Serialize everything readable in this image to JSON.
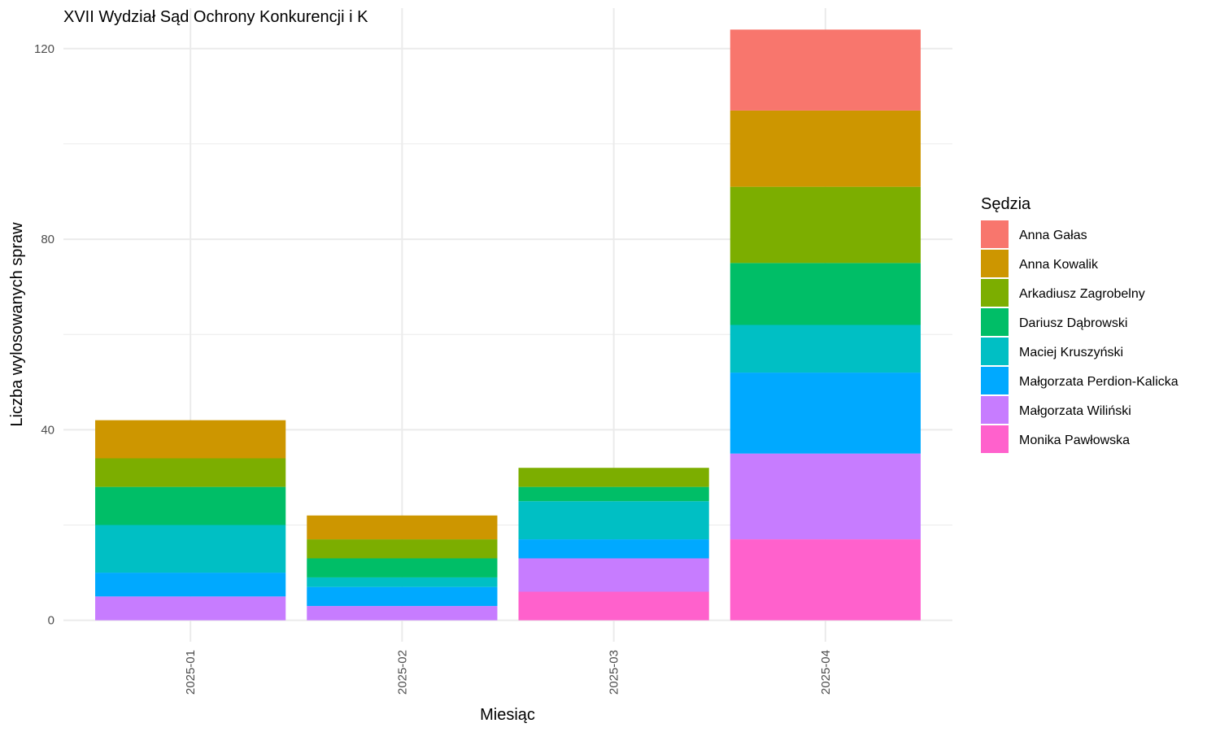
{
  "chart_data": {
    "type": "bar",
    "stacked": true,
    "title": "XVII Wydział Sąd Ochrony Konkurencji i K",
    "xlabel": "Miesiąc",
    "ylabel": "Liczba wylosowanych spraw",
    "categories": [
      "2025-01",
      "2025-02",
      "2025-03",
      "2025-04"
    ],
    "ylim": [
      -4.5,
      128.5
    ],
    "yticks": [
      0,
      40,
      80,
      120
    ],
    "grid": true,
    "legend": {
      "title": "Sędzia",
      "position": "right"
    },
    "series": [
      {
        "name": "Anna Gałas",
        "color": "#F8766D",
        "values": [
          0,
          0,
          0,
          17
        ]
      },
      {
        "name": "Anna Kowalik",
        "color": "#CD9600",
        "values": [
          8,
          5,
          0,
          16
        ]
      },
      {
        "name": "Arkadiusz Zagrobelny",
        "color": "#7CAE00",
        "values": [
          6,
          4,
          4,
          16
        ]
      },
      {
        "name": "Dariusz Dąbrowski",
        "color": "#00BE67",
        "values": [
          8,
          4,
          3,
          13
        ]
      },
      {
        "name": "Maciej Kruszyński",
        "color": "#00BFC4",
        "values": [
          10,
          2,
          8,
          10
        ]
      },
      {
        "name": "Małgorzata Perdion-Kalicka",
        "color": "#00A9FF",
        "values": [
          5,
          4,
          4,
          17
        ]
      },
      {
        "name": "Małgorzata Wiliński",
        "color": "#C77CFF",
        "values": [
          5,
          3,
          7,
          18
        ]
      },
      {
        "name": "Monika Pawłowska",
        "color": "#FF61CC",
        "values": [
          0,
          0,
          6,
          17
        ]
      }
    ]
  }
}
